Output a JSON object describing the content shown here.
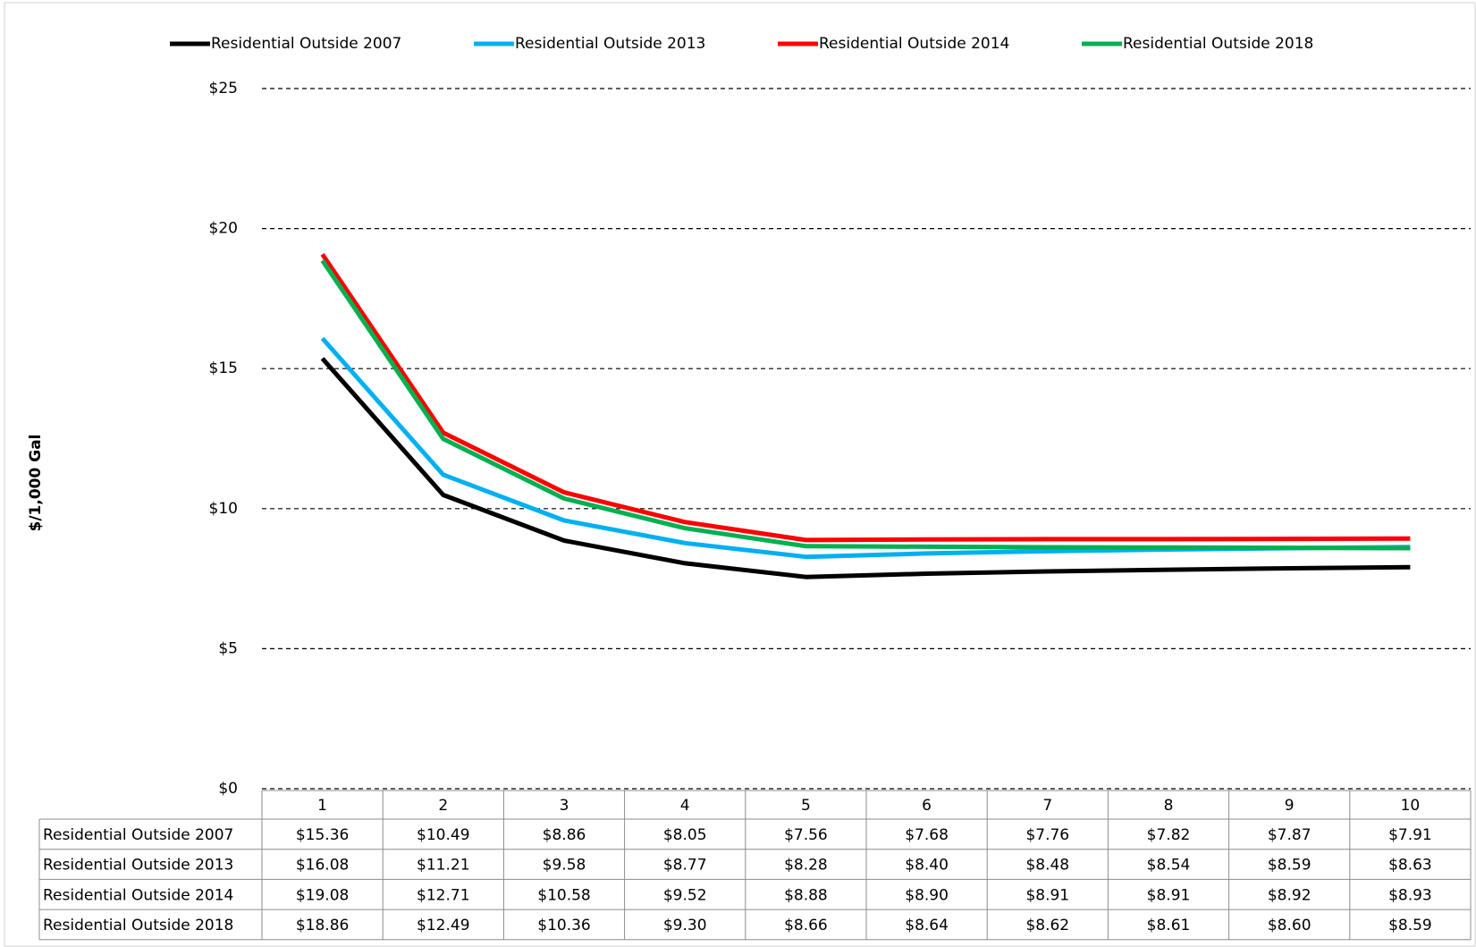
{
  "chart_data": {
    "type": "line",
    "y_axis_title": "$/1,000 Gal",
    "categories": [
      "1",
      "2",
      "3",
      "4",
      "5",
      "6",
      "7",
      "8",
      "9",
      "10"
    ],
    "ylim": [
      0,
      25
    ],
    "yticks": [
      {
        "value": 0,
        "label": "$0"
      },
      {
        "value": 5,
        "label": "$5"
      },
      {
        "value": 10,
        "label": "$10"
      },
      {
        "value": 15,
        "label": "$15"
      },
      {
        "value": 20,
        "label": "$20"
      },
      {
        "value": 25,
        "label": "$25"
      }
    ],
    "grid": true,
    "legend": "top",
    "series": [
      {
        "name": "Residential Outside 2007",
        "color": "#000000",
        "values": [
          15.36,
          10.49,
          8.86,
          8.05,
          7.56,
          7.68,
          7.76,
          7.82,
          7.87,
          7.91
        ],
        "value_labels": [
          "$15.36",
          "$10.49",
          "$8.86",
          "$8.05",
          "$7.56",
          "$7.68",
          "$7.76",
          "$7.82",
          "$7.87",
          "$7.91"
        ]
      },
      {
        "name": "Residential Outside 2013",
        "color": "#00b0f0",
        "values": [
          16.08,
          11.21,
          9.58,
          8.77,
          8.28,
          8.4,
          8.48,
          8.54,
          8.59,
          8.63
        ],
        "value_labels": [
          "$16.08",
          "$11.21",
          "$9.58",
          "$8.77",
          "$8.28",
          "$8.40",
          "$8.48",
          "$8.54",
          "$8.59",
          "$8.63"
        ]
      },
      {
        "name": "Residential Outside 2014",
        "color": "#ff0000",
        "values": [
          19.08,
          12.71,
          10.58,
          9.52,
          8.88,
          8.9,
          8.91,
          8.91,
          8.92,
          8.93
        ],
        "value_labels": [
          "$19.08",
          "$12.71",
          "$10.58",
          "$9.52",
          "$8.88",
          "$8.90",
          "$8.91",
          "$8.91",
          "$8.92",
          "$8.93"
        ]
      },
      {
        "name": "Residential Outside 2018",
        "color": "#00b050",
        "values": [
          18.86,
          12.49,
          10.36,
          9.3,
          8.66,
          8.64,
          8.62,
          8.61,
          8.6,
          8.59
        ],
        "value_labels": [
          "$18.86",
          "$12.49",
          "$10.36",
          "$9.30",
          "$8.66",
          "$8.64",
          "$8.62",
          "$8.61",
          "$8.60",
          "$8.59"
        ]
      }
    ]
  }
}
